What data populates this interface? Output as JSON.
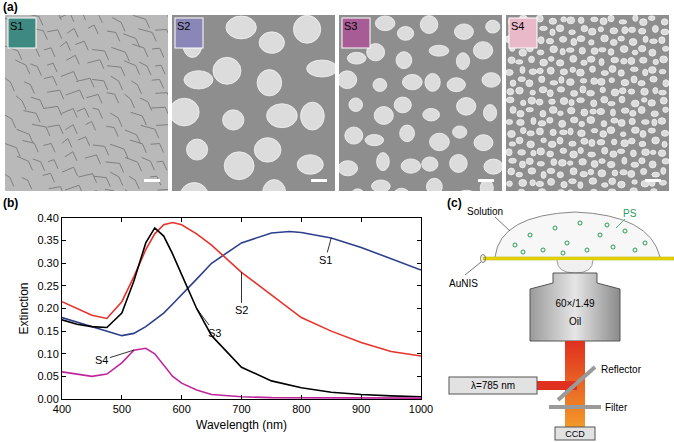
{
  "panel_labels": [
    "(a)",
    "(b)",
    "(c)"
  ],
  "sem_images": [
    {
      "label": "S1",
      "inset_color": "#3e8a82"
    },
    {
      "label": "S2",
      "inset_color": "#8a86b8"
    },
    {
      "label": "S3",
      "inset_color": "#a85c95"
    },
    {
      "label": "S4",
      "inset_color": "#eab9c9"
    }
  ],
  "chart_data": {
    "type": "line",
    "xlabel": "Wavelength (nm)",
    "ylabel": "Extinction",
    "x": [
      400,
      425,
      450,
      475,
      500,
      520,
      540,
      555,
      570,
      585,
      600,
      625,
      650,
      700,
      750,
      780,
      800,
      850,
      900,
      950,
      1000
    ],
    "series": [
      {
        "name": "S1",
        "color": "#2b3f8c",
        "values": [
          0.18,
          0.17,
          0.16,
          0.15,
          0.14,
          0.145,
          0.16,
          0.175,
          0.19,
          0.21,
          0.23,
          0.265,
          0.3,
          0.345,
          0.367,
          0.37,
          0.368,
          0.356,
          0.335,
          0.31,
          0.285
        ]
      },
      {
        "name": "S2",
        "color": "#e8322b",
        "values": [
          0.215,
          0.2,
          0.185,
          0.178,
          0.215,
          0.27,
          0.33,
          0.365,
          0.385,
          0.39,
          0.385,
          0.365,
          0.34,
          0.28,
          0.23,
          0.2,
          0.18,
          0.15,
          0.125,
          0.105,
          0.095
        ]
      },
      {
        "name": "S3",
        "color": "#000000",
        "values": [
          0.175,
          0.165,
          0.16,
          0.158,
          0.19,
          0.26,
          0.345,
          0.378,
          0.36,
          0.32,
          0.275,
          0.2,
          0.14,
          0.07,
          0.04,
          0.03,
          0.025,
          0.015,
          0.01,
          0.007,
          0.005
        ]
      },
      {
        "name": "S4",
        "color": "#c0259e",
        "values": [
          0.06,
          0.055,
          0.05,
          0.055,
          0.08,
          0.108,
          0.112,
          0.1,
          0.075,
          0.05,
          0.035,
          0.02,
          0.01,
          0.005,
          0.003,
          0.003,
          0.002,
          0.002,
          0.002,
          0.002,
          0.002
        ]
      }
    ],
    "xlim": [
      400,
      1000
    ],
    "xticks": [
      400,
      500,
      600,
      700,
      800,
      900,
      1000
    ],
    "ylim": [
      0,
      0.4
    ],
    "yticks": [
      {
        "value": 0,
        "label": "0.00"
      },
      {
        "value": 0.05,
        "label": "0.05"
      },
      {
        "value": 0.1,
        "label": "0.10"
      },
      {
        "value": 0.15,
        "label": "0.15"
      },
      {
        "value": 0.2,
        "label": "0.20"
      },
      {
        "value": 0.25,
        "label": "0.25"
      },
      {
        "value": 0.3,
        "label": "0.30"
      },
      {
        "value": 0.35,
        "label": "0.35"
      },
      {
        "value": 0.4,
        "label": "0.40"
      }
    ],
    "grid": false
  },
  "diagram": {
    "solution": "Solution",
    "particles": "PS",
    "substrate": "AuNIS",
    "objective": "60×/1.49",
    "immersion": "Oil",
    "laser": "λ=785 nm",
    "reflector": "Reflector",
    "filter": "Filter",
    "detector": "CCD"
  }
}
